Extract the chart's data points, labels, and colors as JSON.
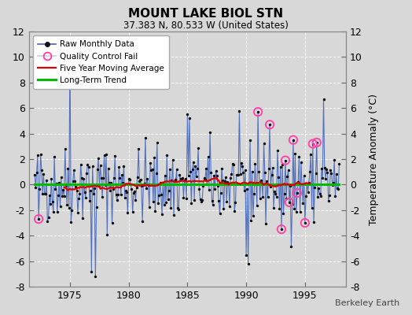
{
  "title": "MOUNT LAKE BIOL STN",
  "subtitle": "37.383 N, 80.533 W (United States)",
  "ylabel": "Temperature Anomaly (°C)",
  "credit": "Berkeley Earth",
  "ylim": [
    -8,
    12
  ],
  "yticks": [
    -8,
    -6,
    -4,
    -2,
    0,
    2,
    4,
    6,
    8,
    10,
    12
  ],
  "xlim": [
    1971.5,
    1998.5
  ],
  "xticks": [
    1975,
    1980,
    1985,
    1990,
    1995
  ],
  "background_color": "#d8d8d8",
  "plot_bg_color": "#d8d8d8",
  "raw_line_color": "#4466bb",
  "raw_dot_color": "#111111",
  "qc_fail_color": "#ff44aa",
  "moving_avg_color": "#dd0000",
  "trend_color": "#00bb00",
  "seed": 42,
  "n_months": 312,
  "start_year": 1972.0
}
